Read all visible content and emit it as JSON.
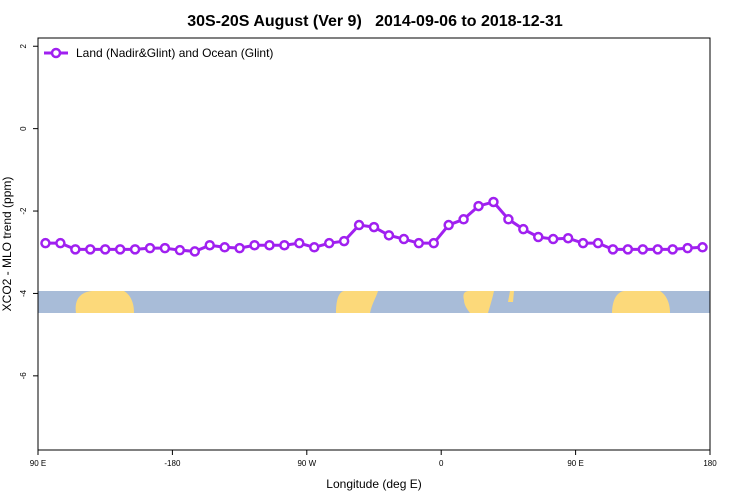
{
  "chart_data": {
    "type": "line",
    "title": "30S-20S August (Ver 9)   2014-09-06 to 2018-12-31",
    "xlabel": "Longitude (deg E)",
    "ylabel": "XCO2 - MLO trend (ppm)",
    "x": [
      -265,
      -255,
      -245,
      -235,
      -225,
      -215,
      -205,
      -195,
      -185,
      -175,
      -165,
      -155,
      -145,
      -135,
      -125,
      -115,
      -105,
      -95,
      -85,
      -75,
      -65,
      -55,
      -45,
      -35,
      -25,
      -15,
      -5,
      5,
      15,
      25,
      35,
      45,
      55,
      65,
      75,
      85,
      95,
      105,
      115,
      125,
      135,
      145,
      155,
      165,
      175
    ],
    "series": [
      {
        "name": "Land (Nadir&Glint) and Ocean (Glint)",
        "color": "#a020f0",
        "values": [
          -2.78,
          -2.78,
          -2.93,
          -2.93,
          -2.93,
          -2.93,
          -2.93,
          -2.9,
          -2.9,
          -2.95,
          -2.98,
          -2.83,
          -2.88,
          -2.9,
          -2.83,
          -2.83,
          -2.83,
          -2.78,
          -2.88,
          -2.78,
          -2.73,
          -2.34,
          -2.39,
          -2.59,
          -2.68,
          -2.78,
          -2.78,
          -2.34,
          -2.2,
          -1.88,
          -1.78,
          -2.2,
          -2.44,
          -2.63,
          -2.68,
          -2.66,
          -2.78,
          -2.78,
          -2.93,
          -2.93,
          -2.93,
          -2.93,
          -2.93,
          -2.9,
          -2.88
        ]
      }
    ],
    "xlim": [
      -270,
      180
    ],
    "xticks": [
      {
        "value": -270,
        "label": "90 E"
      },
      -180,
      {
        "value": -90,
        "label": "90 W"
      },
      0,
      {
        "value": 90,
        "label": "90 E"
      },
      180
    ],
    "ylim": [
      -7.8,
      2.2
    ],
    "yticks": [
      2,
      0,
      -2,
      -4,
      -6
    ],
    "legend": "upper left"
  }
}
